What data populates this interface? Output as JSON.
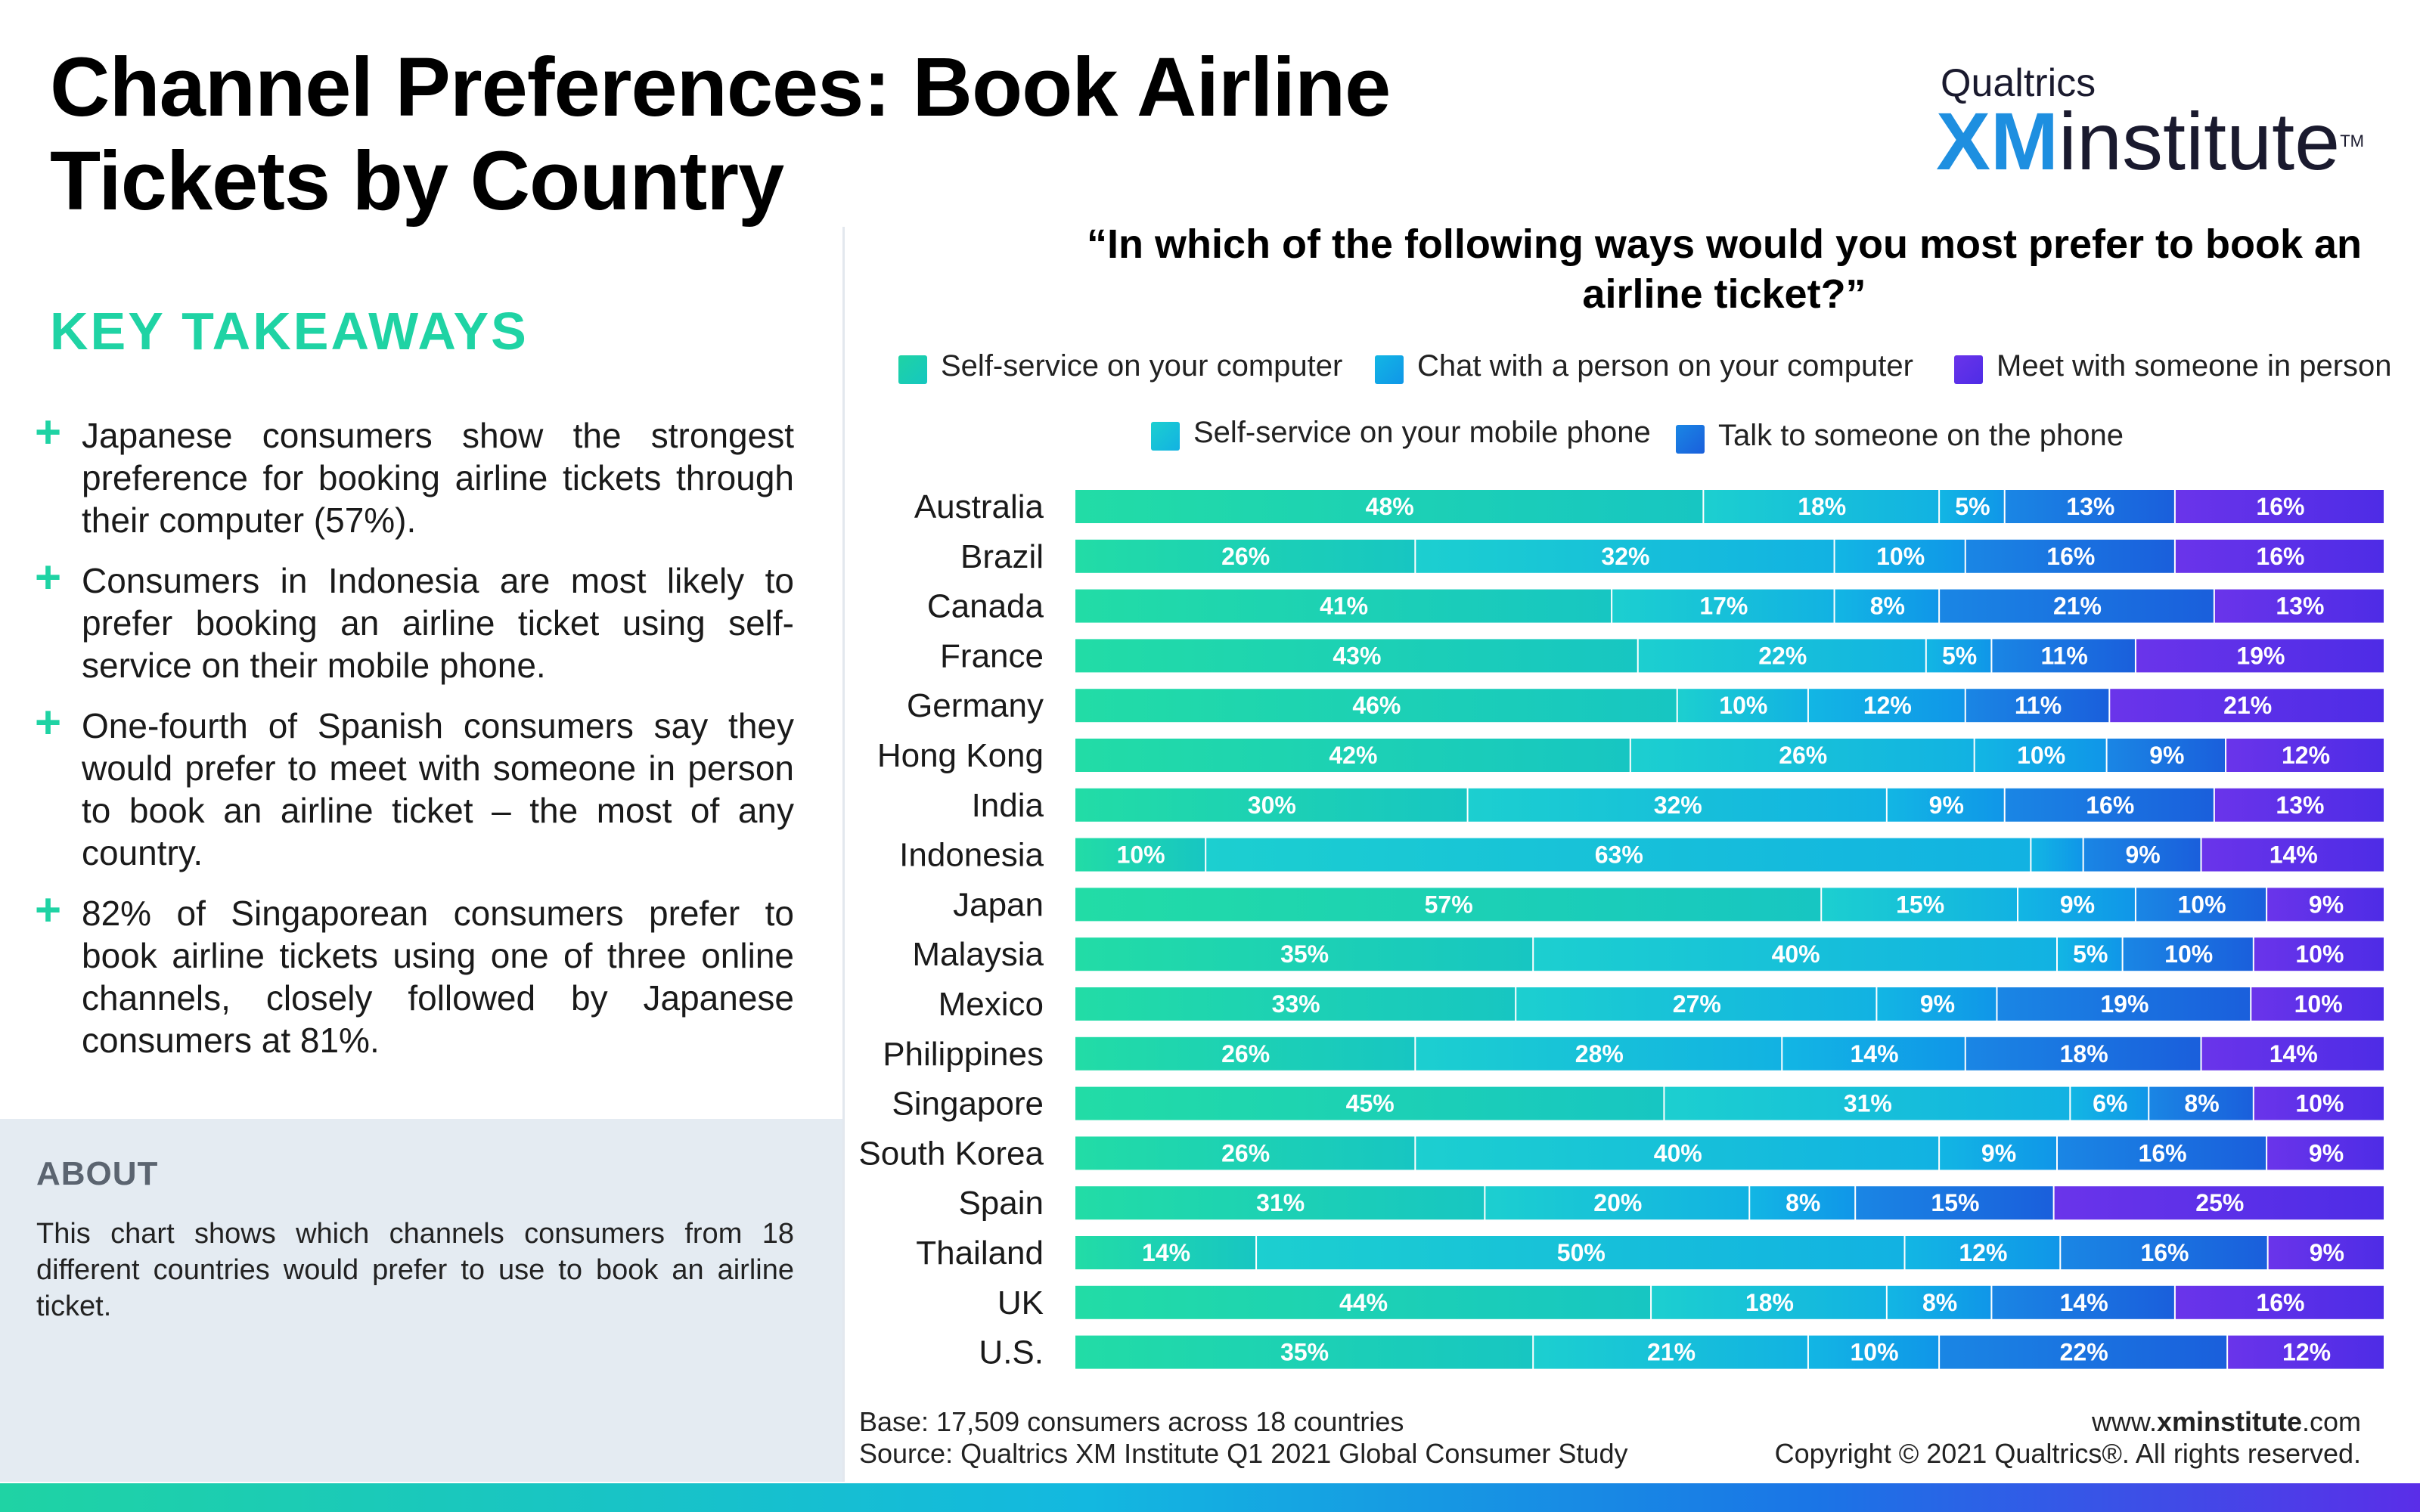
{
  "title": "Channel Preferences: Book Airline Tickets by Country",
  "logo": {
    "top": "Qualtrics",
    "xm": "XM",
    "institute": "institute",
    "tm": "TM"
  },
  "key_takeaways": {
    "heading": "KEY TAKEAWAYS",
    "items": [
      "Japanese consumers show the strongest preference for booking airline tickets through their computer (57%).",
      "Consumers in Indonesia are most likely to prefer booking an airline ticket using self-service on their mobile phone.",
      "One-fourth of Spanish consumers say they would prefer to meet with someone in person to book an airline ticket – the most of any country.",
      "82% of Singaporean consumers prefer to book airline tickets using one of three online channels, closely followed by Japanese consumers at 81%."
    ]
  },
  "about": {
    "heading": "ABOUT",
    "text": "This chart shows which channels consumers from 18 different countries would prefer to use to book an airline ticket."
  },
  "footer": {
    "base": "Base: 17,509 consumers across 18 countries",
    "source": "Source: Qualtrics XM Institute Q1 2021 Global Consumer Study",
    "url_prefix": "www.",
    "url_bold": "xminstitute",
    "url_suffix": ".com",
    "copyright": "Copyright © 2021 Qualtrics®. All rights reserved."
  },
  "colors": {
    "self_service_computer": "#1fd3a4",
    "self_service_mobile": "#19bfd8",
    "chat_computer": "#10a8e6",
    "talk_phone": "#1a72e0",
    "meet_in_person": "#5a2ee8"
  },
  "chart_data": {
    "type": "bar",
    "orientation": "horizontal",
    "stacked": true,
    "normalized": true,
    "title": "“In which of the following ways would you most prefer to book an airline ticket?”",
    "legend_placement": "top",
    "legend_order": [
      "Self-service on your computer",
      "Chat with a person on your computer",
      "Meet with someone in person",
      "Self-service on your mobile phone",
      "Talk to someone on the phone"
    ],
    "categories": [
      "Australia",
      "Brazil",
      "Canada",
      "France",
      "Germany",
      "Hong Kong",
      "India",
      "Indonesia",
      "Japan",
      "Malaysia",
      "Mexico",
      "Philippines",
      "Singapore",
      "South Korea",
      "Spain",
      "Thailand",
      "UK",
      "U.S."
    ],
    "series": [
      {
        "name": "Self-service on your computer",
        "color": "#1fd3a4",
        "values": [
          48,
          26,
          41,
          43,
          46,
          42,
          30,
          10,
          57,
          35,
          33,
          26,
          45,
          26,
          31,
          14,
          44,
          35
        ]
      },
      {
        "name": "Self-service on your mobile phone",
        "color": "#19bfd8",
        "values": [
          18,
          32,
          17,
          22,
          10,
          26,
          32,
          63,
          15,
          40,
          27,
          28,
          31,
          40,
          20,
          50,
          18,
          21
        ]
      },
      {
        "name": "Chat with a person on your computer",
        "color": "#10a8e6",
        "values": [
          5,
          10,
          8,
          5,
          12,
          10,
          9,
          4,
          9,
          5,
          9,
          14,
          6,
          9,
          8,
          12,
          8,
          10
        ]
      },
      {
        "name": "Talk to someone on the phone",
        "color": "#1a72e0",
        "values": [
          13,
          16,
          21,
          11,
          11,
          9,
          16,
          9,
          10,
          10,
          19,
          18,
          8,
          16,
          15,
          16,
          14,
          22
        ]
      },
      {
        "name": "Meet with someone in person",
        "color": "#5a2ee8",
        "values": [
          16,
          16,
          13,
          19,
          21,
          12,
          13,
          14,
          9,
          10,
          10,
          14,
          10,
          9,
          25,
          9,
          16,
          12
        ]
      }
    ],
    "label_min": 5,
    "value_suffix": "%",
    "grid": false
  }
}
